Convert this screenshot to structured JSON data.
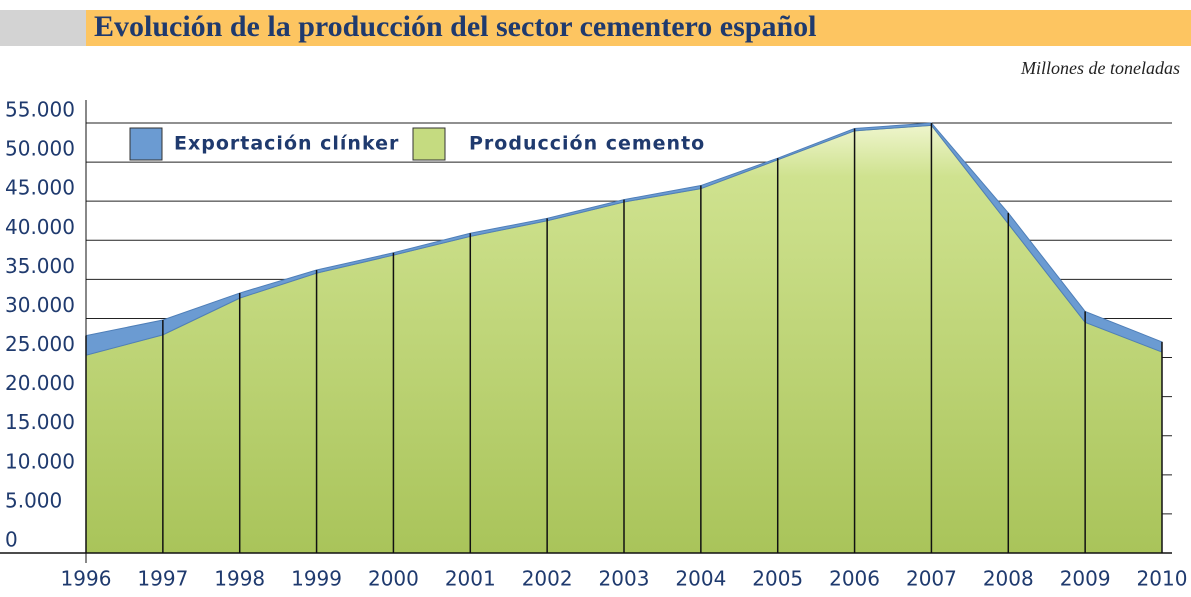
{
  "chart_data": {
    "type": "stacked-area",
    "title": "Evolución de la producción del sector cementero español",
    "subtitle": "Millones de toneladas",
    "categories": [
      "1996",
      "1997",
      "1998",
      "1999",
      "2000",
      "2001",
      "2002",
      "2003",
      "2004",
      "2005",
      "2006",
      "2007",
      "2008",
      "2009",
      "2010"
    ],
    "series": [
      {
        "name": "Producción cemento",
        "color": "#c5db80",
        "values": [
          25300,
          27900,
          32600,
          35800,
          38100,
          40500,
          42500,
          44900,
          46600,
          50300,
          54000,
          54700,
          42100,
          29500,
          25700
        ]
      },
      {
        "name": "Exportación clínker",
        "color": "#6b9bd2",
        "values": [
          2500,
          1900,
          650,
          400,
          300,
          400,
          300,
          300,
          400,
          200,
          300,
          300,
          1400,
          1400,
          1300
        ]
      }
    ],
    "legend_order": [
      1,
      0
    ],
    "ylim": [
      0,
      55000
    ],
    "yticks": [
      0,
      {
        "value": 5000,
        "label": "5.000"
      },
      {
        "value": 10000,
        "label": "10.000"
      },
      {
        "value": 15000,
        "label": "15.000"
      },
      {
        "value": 20000,
        "label": "20.000"
      },
      {
        "value": 25000,
        "label": "25.000"
      },
      {
        "value": 30000,
        "label": "30.000"
      },
      {
        "value": 35000,
        "label": "35.000"
      },
      {
        "value": 40000,
        "label": "40.000"
      },
      {
        "value": 45000,
        "label": "45.000"
      },
      {
        "value": 50000,
        "label": "50.000"
      },
      {
        "value": 55000,
        "label": "55.000"
      }
    ],
    "grid": true
  }
}
